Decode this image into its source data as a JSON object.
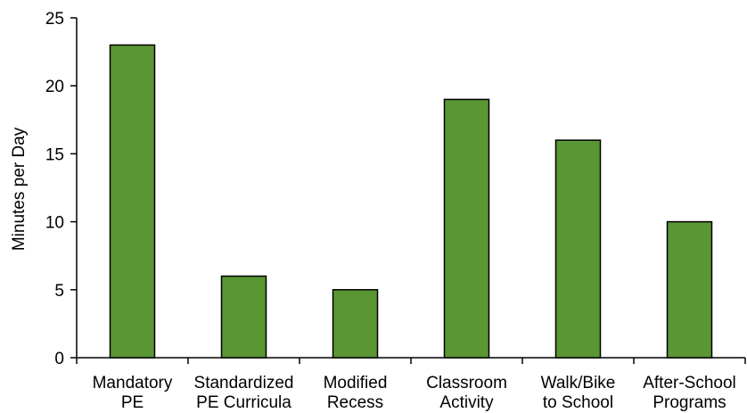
{
  "chart_data": {
    "type": "bar",
    "title": "",
    "xlabel": "",
    "ylabel": "Minutes per Day",
    "ylim": [
      0,
      25
    ],
    "yticks": [
      0,
      5,
      10,
      15,
      20,
      25
    ],
    "categories": [
      [
        "Mandatory",
        "PE"
      ],
      [
        "Standardized",
        "PE Curricula"
      ],
      [
        "Modified",
        "Recess"
      ],
      [
        "Classroom",
        "Activity"
      ],
      [
        "Walk/Bike",
        "to School"
      ],
      [
        "After-School",
        "Programs"
      ]
    ],
    "values": [
      23,
      6,
      5,
      19,
      16,
      10
    ],
    "bar_color": "#5a9632",
    "bar_edge_color": "#000000",
    "grid": false,
    "legend": "none"
  }
}
